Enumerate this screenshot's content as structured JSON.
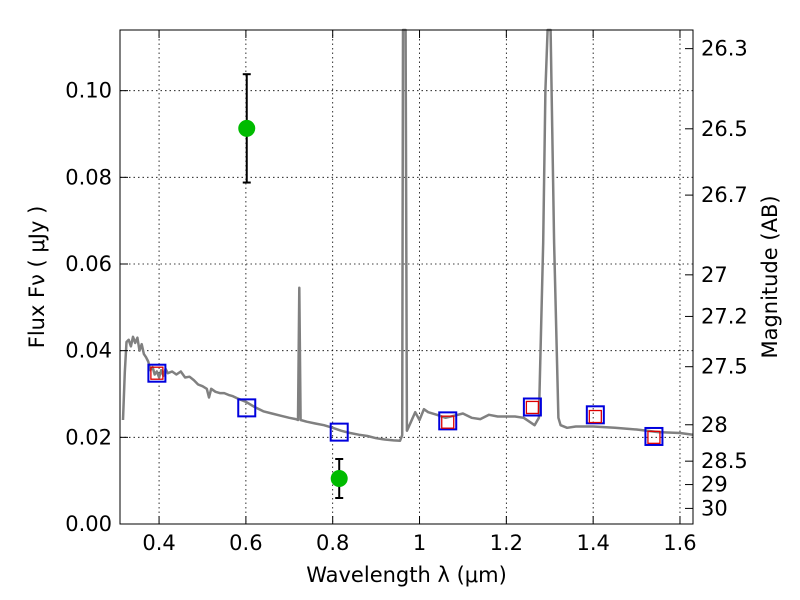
{
  "chart_data": {
    "type": "line",
    "title": "",
    "xlabel": "Wavelength  λ (μm)",
    "ylabel": "Flux  Fν  ( μJy )",
    "ylabel_right": "Magnitude (AB)",
    "xlim": [
      0.31,
      1.63
    ],
    "ylim": [
      0.0,
      0.114
    ],
    "grid": true,
    "x_ticks": [
      0.4,
      0.6,
      0.8,
      1.0,
      1.2,
      1.4,
      1.6
    ],
    "x_tick_labels": [
      "0.4",
      "0.6",
      "0.8",
      "1",
      "1.2",
      "1.4",
      "1.6"
    ],
    "y_ticks": [
      0.0,
      0.02,
      0.04,
      0.06,
      0.08,
      0.1
    ],
    "y_tick_labels": [
      "0.00",
      "0.02",
      "0.04",
      "0.06",
      "0.08",
      "0.10"
    ],
    "right_ticks": [
      {
        "label": "26.3",
        "flux": 0.1097
      },
      {
        "label": "26.5",
        "flux": 0.0912
      },
      {
        "label": "26.7",
        "flux": 0.0759
      },
      {
        "label": "27",
        "flux": 0.0575
      },
      {
        "label": "27.2",
        "flux": 0.0479
      },
      {
        "label": "27.5",
        "flux": 0.0363
      },
      {
        "label": "28",
        "flux": 0.0229
      },
      {
        "label": "28.5",
        "flux": 0.0145
      },
      {
        "label": "29",
        "flux": 0.0091
      },
      {
        "label": "30",
        "flux": 0.0036
      }
    ],
    "series": [
      {
        "name": "model-spectrum",
        "color": "#808080",
        "points": [
          [
            0.317,
            0.024
          ],
          [
            0.321,
            0.035
          ],
          [
            0.325,
            0.042
          ],
          [
            0.33,
            0.0425
          ],
          [
            0.335,
            0.041
          ],
          [
            0.34,
            0.0432
          ],
          [
            0.345,
            0.0418
          ],
          [
            0.35,
            0.043
          ],
          [
            0.355,
            0.04
          ],
          [
            0.36,
            0.0415
          ],
          [
            0.365,
            0.0392
          ],
          [
            0.37,
            0.0385
          ],
          [
            0.375,
            0.0375
          ],
          [
            0.38,
            0.0355
          ],
          [
            0.385,
            0.0362
          ],
          [
            0.39,
            0.0345
          ],
          [
            0.395,
            0.0352
          ],
          [
            0.4,
            0.0338
          ],
          [
            0.405,
            0.0355
          ],
          [
            0.41,
            0.0342
          ],
          [
            0.415,
            0.0358
          ],
          [
            0.42,
            0.0348
          ],
          [
            0.43,
            0.0352
          ],
          [
            0.44,
            0.0345
          ],
          [
            0.45,
            0.0352
          ],
          [
            0.46,
            0.0338
          ],
          [
            0.47,
            0.034
          ],
          [
            0.48,
            0.0332
          ],
          [
            0.49,
            0.0322
          ],
          [
            0.5,
            0.0318
          ],
          [
            0.51,
            0.0312
          ],
          [
            0.515,
            0.0292
          ],
          [
            0.52,
            0.0312
          ],
          [
            0.53,
            0.0305
          ],
          [
            0.54,
            0.0302
          ],
          [
            0.55,
            0.0302
          ],
          [
            0.56,
            0.0298
          ],
          [
            0.57,
            0.0295
          ],
          [
            0.58,
            0.029
          ],
          [
            0.6,
            0.0282
          ],
          [
            0.62,
            0.027
          ],
          [
            0.64,
            0.026
          ],
          [
            0.66,
            0.0255
          ],
          [
            0.68,
            0.025
          ],
          [
            0.7,
            0.0245
          ],
          [
            0.715,
            0.0242
          ],
          [
            0.72,
            0.024
          ],
          [
            0.723,
            0.0545
          ],
          [
            0.726,
            0.024
          ],
          [
            0.74,
            0.0236
          ],
          [
            0.76,
            0.0232
          ],
          [
            0.78,
            0.0228
          ],
          [
            0.8,
            0.0222
          ],
          [
            0.82,
            0.0215
          ],
          [
            0.84,
            0.021
          ],
          [
            0.86,
            0.0206
          ],
          [
            0.88,
            0.0203
          ],
          [
            0.9,
            0.0198
          ],
          [
            0.92,
            0.0195
          ],
          [
            0.94,
            0.0193
          ],
          [
            0.955,
            0.0192
          ],
          [
            0.96,
            0.0205
          ],
          [
            0.962,
            0.114
          ],
          [
            0.968,
            0.114
          ],
          [
            0.971,
            0.0215
          ],
          [
            0.98,
            0.0235
          ],
          [
            0.99,
            0.0258
          ],
          [
            1.0,
            0.024
          ],
          [
            1.01,
            0.0265
          ],
          [
            1.02,
            0.0258
          ],
          [
            1.04,
            0.0252
          ],
          [
            1.06,
            0.0245
          ],
          [
            1.08,
            0.025
          ],
          [
            1.1,
            0.0255
          ],
          [
            1.12,
            0.0245
          ],
          [
            1.14,
            0.0242
          ],
          [
            1.16,
            0.0252
          ],
          [
            1.18,
            0.0248
          ],
          [
            1.2,
            0.0248
          ],
          [
            1.22,
            0.0248
          ],
          [
            1.24,
            0.0245
          ],
          [
            1.255,
            0.0235
          ],
          [
            1.265,
            0.0228
          ],
          [
            1.275,
            0.0245
          ],
          [
            1.285,
            0.065
          ],
          [
            1.29,
            0.1
          ],
          [
            1.295,
            0.114
          ],
          [
            1.302,
            0.114
          ],
          [
            1.31,
            0.065
          ],
          [
            1.32,
            0.0245
          ],
          [
            1.325,
            0.0228
          ],
          [
            1.34,
            0.0222
          ],
          [
            1.36,
            0.0225
          ],
          [
            1.4,
            0.0225
          ],
          [
            1.45,
            0.0222
          ],
          [
            1.5,
            0.0218
          ],
          [
            1.55,
            0.0212
          ],
          [
            1.6,
            0.021
          ],
          [
            1.63,
            0.0206
          ]
        ]
      }
    ],
    "observed_points": [
      {
        "x": 0.602,
        "y": 0.0913,
        "yerr_low": 0.0788,
        "yerr_high": 0.1038,
        "color": "#00bb00"
      },
      {
        "x": 0.815,
        "y": 0.0105,
        "yerr_low": 0.006,
        "yerr_high": 0.015,
        "color": "#00bb00"
      }
    ],
    "blue_squares": [
      {
        "x": 0.395,
        "y": 0.0348
      },
      {
        "x": 0.602,
        "y": 0.0268
      },
      {
        "x": 0.815,
        "y": 0.0212
      },
      {
        "x": 1.065,
        "y": 0.0238
      },
      {
        "x": 1.26,
        "y": 0.027
      },
      {
        "x": 1.405,
        "y": 0.0252
      },
      {
        "x": 1.54,
        "y": 0.0202
      }
    ],
    "red_squares": [
      {
        "x": 0.395,
        "y": 0.0348
      },
      {
        "x": 1.065,
        "y": 0.0235
      },
      {
        "x": 1.26,
        "y": 0.0269
      },
      {
        "x": 1.405,
        "y": 0.0248
      },
      {
        "x": 1.54,
        "y": 0.02
      }
    ],
    "colors": {
      "spectrum": "#808080",
      "blue_square": "#0000dd",
      "red_square": "#dd0000",
      "observed": "#00bb00",
      "errorbar": "#000000"
    }
  }
}
